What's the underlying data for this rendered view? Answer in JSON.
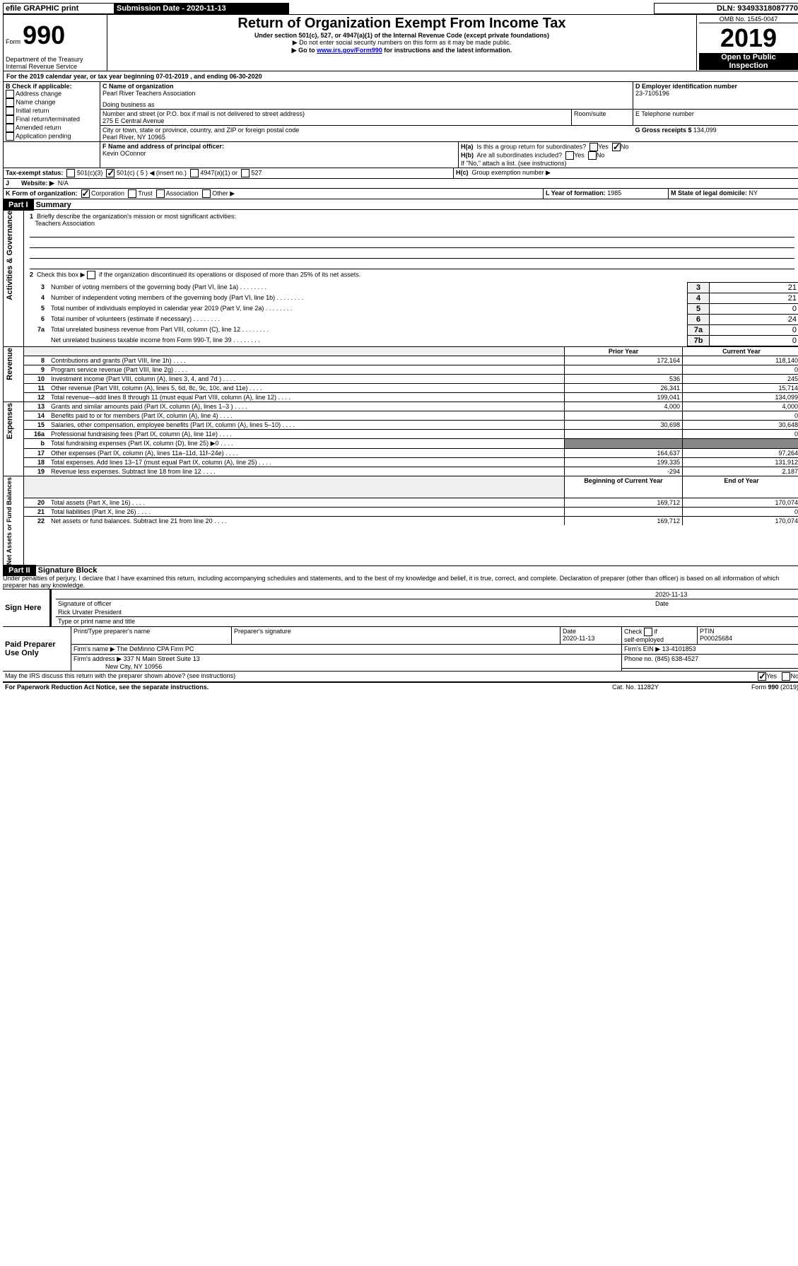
{
  "topbar": {
    "efile": "efile GRAPHIC print",
    "submission_label": "Submission Date - ",
    "submission_date": "2020-11-13",
    "dln_label": "DLN: ",
    "dln": "93493318087770"
  },
  "header": {
    "form_label": "Form",
    "form_number": "990",
    "title": "Return of Organization Exempt From Income Tax",
    "subtitle": "Under section 501(c), 527, or 4947(a)(1) of the Internal Revenue Code (except private foundations)",
    "note1": "▶ Do not enter social security numbers on this form as it may be made public.",
    "note2": "▶ Go to ",
    "note2_link": "www.irs.gov/Form990",
    "note2_rest": " for instructions and the latest information.",
    "dept": "Department of the Treasury\nInternal Revenue Service",
    "omb_label": "OMB No. 1545-0047",
    "year": "2019",
    "inspection1": "Open to Public",
    "inspection2": "Inspection"
  },
  "sectionA": {
    "period": "For the 2019 calendar year, or tax year beginning 07-01-2019   , and ending 06-30-2020",
    "b_label": "B Check if applicable:",
    "b_items": [
      "Address change",
      "Name change",
      "Initial return",
      "Final return/terminated",
      "Amended return",
      "Application pending"
    ],
    "c_label": "C Name of organization",
    "c_name": "Pearl River Teachers Association",
    "dba_label": "Doing business as",
    "street_label": "Number and street (or P.O. box if mail is not delivered to street address)",
    "street": "275 E Central Avenue",
    "room_label": "Room/suite",
    "city_label": "City or town, state or province, country, and ZIP or foreign postal code",
    "city": "Pearl River, NY  10965",
    "d_label": "D Employer identification number",
    "d_ein": "23-7105196",
    "e_label": "E Telephone number",
    "f_label": "F  Name and address of principal officer:",
    "f_name": "Kevin OConnor",
    "g_label": "G Gross receipts $ ",
    "g_amount": "134,099",
    "ha_label": "H(a)",
    "ha_text": "Is this a group return for subordinates?",
    "hb_label": "H(b)",
    "hb_text": "Are all subordinates included?",
    "hb_note": "If \"No,\" attach a list. (see instructions)",
    "hc_label": "H(c)",
    "hc_text": "Group exemption number ▶",
    "yes": "Yes",
    "no": "No",
    "tax_exempt_label": "Tax-exempt status:",
    "te_501c3": "501(c)(3)",
    "te_501c": "501(c) ( 5 ) ◀ (insert no.)",
    "te_4947": "4947(a)(1) or",
    "te_527": "527",
    "j_label": "J",
    "website_label": "Website: ▶",
    "website": "N/A",
    "k_label": "K Form of organization:",
    "k_corp": "Corporation",
    "k_trust": "Trust",
    "k_assoc": "Association",
    "k_other": "Other ▶",
    "l_label": "L Year of formation: ",
    "l_year": "1985",
    "m_label": "M State of legal domicile: ",
    "m_state": "NY"
  },
  "part1": {
    "title": "Part I",
    "heading": "Summary",
    "line1_label": "1",
    "line1_text": "Briefly describe the organization's mission or most significant activities:",
    "line1_ans": "Teachers Association",
    "line2_label": "2",
    "line2_text": "Check this box ▶",
    "line2_rest": "if the organization discontinued its operations or disposed of more than 25% of its net assets.",
    "rows_gov": [
      {
        "n": "3",
        "t": "Number of voting members of the governing body (Part VI, line 1a)",
        "c": "3",
        "v": "21"
      },
      {
        "n": "4",
        "t": "Number of independent voting members of the governing body (Part VI, line 1b)",
        "c": "4",
        "v": "21"
      },
      {
        "n": "5",
        "t": "Total number of individuals employed in calendar year 2019 (Part V, line 2a)",
        "c": "5",
        "v": "0"
      },
      {
        "n": "6",
        "t": "Total number of volunteers (estimate if necessary)",
        "c": "6",
        "v": "24"
      },
      {
        "n": "7a",
        "t": "Total unrelated business revenue from Part VIII, column (C), line 12",
        "c": "7a",
        "v": "0"
      },
      {
        "n": "",
        "t": "Net unrelated business taxable income from Form 990-T, line 39",
        "c": "7b",
        "v": "0"
      }
    ],
    "col_prior": "Prior Year",
    "col_current": "Current Year",
    "rows_rev": [
      {
        "n": "8",
        "t": "Contributions and grants (Part VIII, line 1h)",
        "p": "172,164",
        "c": "118,140"
      },
      {
        "n": "9",
        "t": "Program service revenue (Part VIII, line 2g)",
        "p": "",
        "c": "0"
      },
      {
        "n": "10",
        "t": "Investment income (Part VIII, column (A), lines 3, 4, and 7d )",
        "p": "536",
        "c": "245"
      },
      {
        "n": "11",
        "t": "Other revenue (Part VIII, column (A), lines 5, 6d, 8c, 9c, 10c, and 11e)",
        "p": "26,341",
        "c": "15,714"
      },
      {
        "n": "12",
        "t": "Total revenue—add lines 8 through 11 (must equal Part VIII, column (A), line 12)",
        "p": "199,041",
        "c": "134,099"
      }
    ],
    "rows_exp": [
      {
        "n": "13",
        "t": "Grants and similar amounts paid (Part IX, column (A), lines 1–3 )",
        "p": "4,000",
        "c": "4,000"
      },
      {
        "n": "14",
        "t": "Benefits paid to or for members (Part IX, column (A), line 4)",
        "p": "",
        "c": "0"
      },
      {
        "n": "15",
        "t": "Salaries, other compensation, employee benefits (Part IX, column (A), lines 5–10)",
        "p": "30,698",
        "c": "30,648"
      },
      {
        "n": "16a",
        "t": "Professional fundraising fees (Part IX, column (A), line 11e)",
        "p": "",
        "c": "0"
      },
      {
        "n": "b",
        "t": "Total fundraising expenses (Part IX, column (D), line 25) ▶0",
        "p": "",
        "c": "",
        "shade": true
      },
      {
        "n": "17",
        "t": "Other expenses (Part IX, column (A), lines 11a–11d, 11f–24e)",
        "p": "164,637",
        "c": "97,264"
      },
      {
        "n": "18",
        "t": "Total expenses. Add lines 13–17 (must equal Part IX, column (A), line 25)",
        "p": "199,335",
        "c": "131,912"
      },
      {
        "n": "19",
        "t": "Revenue less expenses. Subtract line 18 from line 12",
        "p": "-294",
        "c": "2,187"
      }
    ],
    "col_begin": "Beginning of Current Year",
    "col_end": "End of Year",
    "rows_net": [
      {
        "n": "20",
        "t": "Total assets (Part X, line 16)",
        "p": "169,712",
        "c": "170,074"
      },
      {
        "n": "21",
        "t": "Total liabilities (Part X, line 26)",
        "p": "",
        "c": "0"
      },
      {
        "n": "22",
        "t": "Net assets or fund balances. Subtract line 21 from line 20",
        "p": "169,712",
        "c": "170,074"
      }
    ],
    "side_gov": "Activities & Governance",
    "side_rev": "Revenue",
    "side_exp": "Expenses",
    "side_net": "Net Assets or Fund Balances"
  },
  "part2": {
    "title": "Part II",
    "heading": "Signature Block",
    "declaration": "Under penalties of perjury, I declare that I have examined this return, including accompanying schedules and statements, and to the best of my knowledge and belief, it is true, correct, and complete. Declaration of preparer (other than officer) is based on all information of which preparer has any knowledge.",
    "sign_here": "Sign Here",
    "sig_officer": "Signature of officer",
    "sig_date": "2020-11-13",
    "date_label": "Date",
    "officer_name": "Rick Urvater  President",
    "name_title": "Type or print name and title",
    "paid_prep": "Paid Preparer Use Only",
    "prep_name_label": "Print/Type preparer's name",
    "prep_sig_label": "Preparer's signature",
    "prep_date_label": "Date",
    "prep_date": "2020-11-13",
    "check_label": "Check",
    "self_emp": "self-employed",
    "if_label": "if",
    "ptin_label": "PTIN",
    "ptin": "P00025684",
    "firm_name_label": "Firm's name    ▶ ",
    "firm_name": "The DeMinno CPA Firm PC",
    "firm_ein_label": "Firm's EIN ▶ ",
    "firm_ein": "13-4101853",
    "firm_addr_label": "Firm's address ▶ ",
    "firm_addr1": "337 N Main Street Suite 13",
    "firm_addr2": "New City, NY  10956",
    "phone_label": "Phone no. ",
    "phone": "(845) 638-4527",
    "discuss": "May the IRS discuss this return with the preparer shown above? (see instructions)",
    "paperwork": "For Paperwork Reduction Act Notice, see the separate instructions.",
    "catno": "Cat. No. 11282Y",
    "form_footer": "Form 990 (2019)"
  }
}
